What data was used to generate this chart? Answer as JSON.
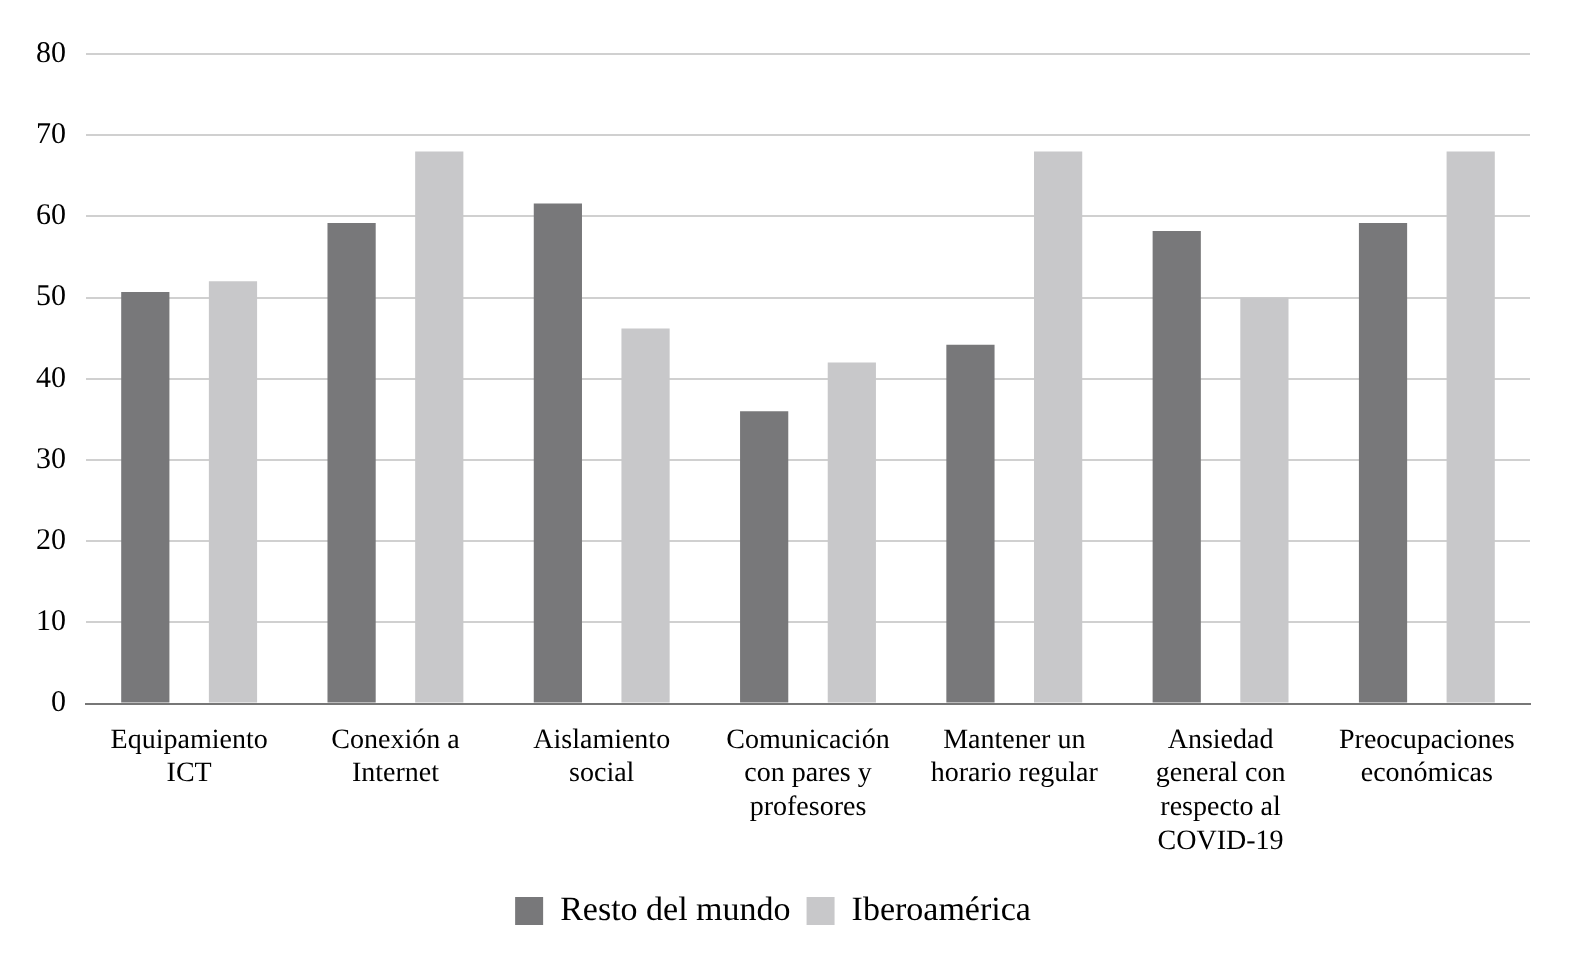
{
  "chart_data": {
    "type": "bar",
    "categories": [
      "Equipamiento ICT",
      "Conexión a Internet",
      "Aislamiento social",
      "Comunicación con pares y profesores",
      "Mantener un horario regular",
      "Ansiedad general con respecto al COVID-19",
      "Preocupaciones económicas"
    ],
    "series": [
      {
        "name": "Resto del mundo",
        "color": "#78787a",
        "values": [
          50.7,
          59.2,
          61.6,
          36,
          44.2,
          58.2,
          59.2
        ]
      },
      {
        "name": "Iberoamérica",
        "color": "#c8c8ca",
        "values": [
          52,
          68,
          46.2,
          42,
          68,
          50,
          68
        ]
      }
    ],
    "ylim": [
      0,
      80
    ],
    "yticks": [
      0,
      10,
      20,
      30,
      40,
      50,
      60,
      70,
      80
    ],
    "grid": "y",
    "legend": "bottom"
  }
}
